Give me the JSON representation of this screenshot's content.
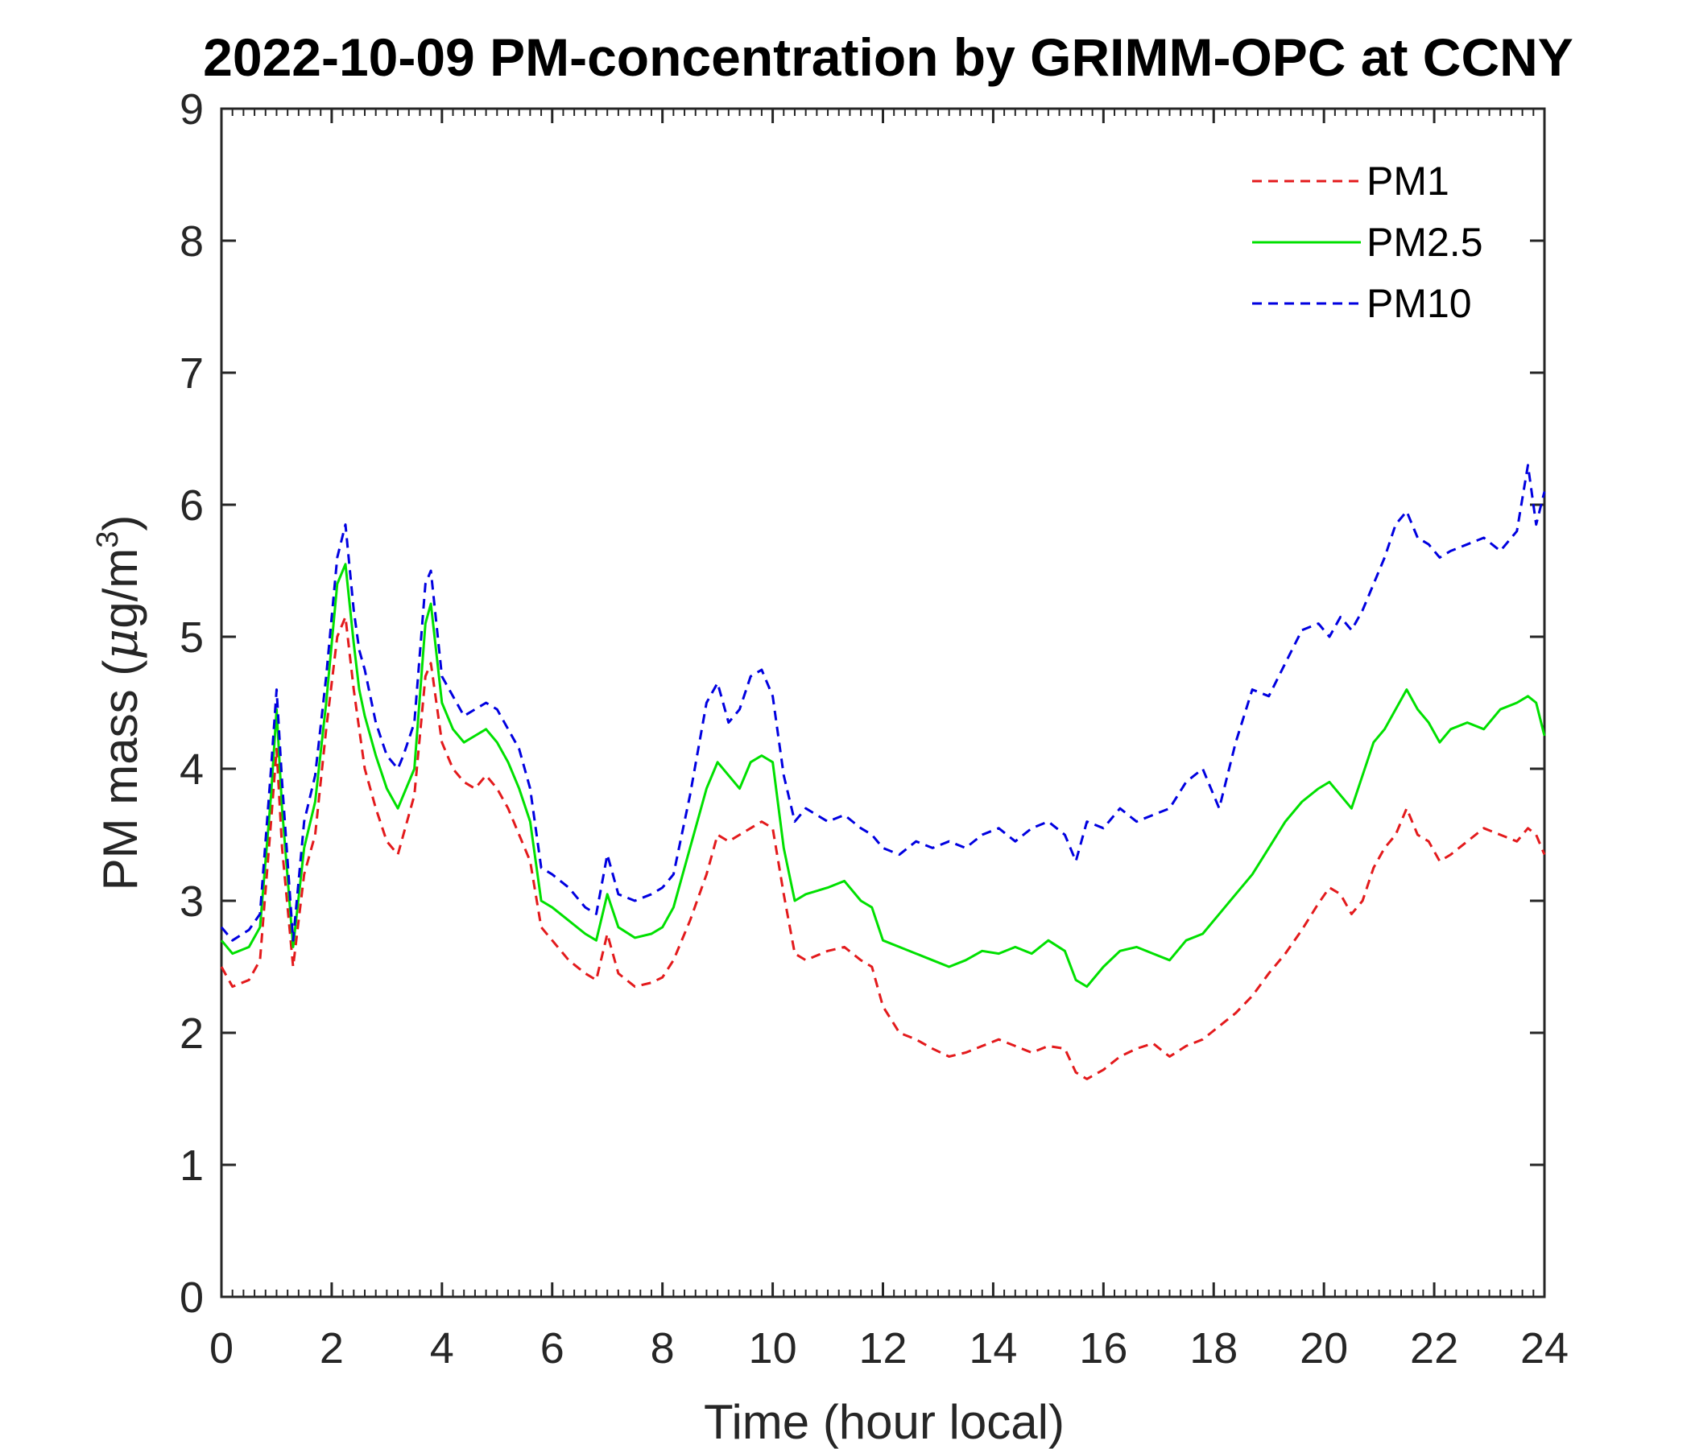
{
  "chart_data": {
    "type": "line",
    "title": "2022-10-09 PM-concentration by GRIMM-OPC at CCNY",
    "xlabel": "Time (hour local)",
    "ylabel_prefix": "PM mass (",
    "ylabel_mu": "μ",
    "ylabel_unit": "g/m",
    "ylabel_exp": "3",
    "ylabel_suffix": ")",
    "xlim": [
      0,
      24
    ],
    "ylim": [
      0,
      9
    ],
    "xticks": [
      "0",
      "2",
      "4",
      "6",
      "8",
      "10",
      "12",
      "14",
      "16",
      "18",
      "20",
      "22",
      "24"
    ],
    "yticks": [
      "0",
      "1",
      "2",
      "3",
      "4",
      "5",
      "6",
      "7",
      "8",
      "9"
    ],
    "grid": false,
    "legend_position": "top-right",
    "series": [
      {
        "name": "PM1",
        "color": "#e31a1c",
        "style": "dashed",
        "x": [
          0,
          0.2,
          0.5,
          0.7,
          0.9,
          1.0,
          1.1,
          1.3,
          1.5,
          1.7,
          1.9,
          2.1,
          2.25,
          2.4,
          2.5,
          2.6,
          2.8,
          3.0,
          3.2,
          3.3,
          3.5,
          3.7,
          3.8,
          4.0,
          4.2,
          4.4,
          4.6,
          4.8,
          5.0,
          5.2,
          5.4,
          5.6,
          5.8,
          6.0,
          6.3,
          6.6,
          6.8,
          7.0,
          7.2,
          7.5,
          7.8,
          8.0,
          8.2,
          8.5,
          8.8,
          9.0,
          9.2,
          9.4,
          9.6,
          9.8,
          10.0,
          10.2,
          10.4,
          10.6,
          11.0,
          11.3,
          11.6,
          11.8,
          12.0,
          12.3,
          12.6,
          12.9,
          13.2,
          13.5,
          13.8,
          14.1,
          14.4,
          14.7,
          15.0,
          15.3,
          15.5,
          15.7,
          16.0,
          16.3,
          16.6,
          16.9,
          17.2,
          17.5,
          17.8,
          18.1,
          18.4,
          18.7,
          19.0,
          19.3,
          19.6,
          19.9,
          20.1,
          20.3,
          20.5,
          20.7,
          20.9,
          21.1,
          21.3,
          21.5,
          21.7,
          21.9,
          22.1,
          22.3,
          22.6,
          22.9,
          23.2,
          23.5,
          23.7,
          23.85,
          24.0
        ],
        "y": [
          2.5,
          2.35,
          2.4,
          2.55,
          3.6,
          4.15,
          3.4,
          2.5,
          3.2,
          3.5,
          4.3,
          5.0,
          5.15,
          4.6,
          4.3,
          4.0,
          3.7,
          3.45,
          3.35,
          3.5,
          3.8,
          4.7,
          4.8,
          4.2,
          4.0,
          3.9,
          3.85,
          3.95,
          3.85,
          3.7,
          3.5,
          3.3,
          2.8,
          2.7,
          2.55,
          2.45,
          2.4,
          2.75,
          2.45,
          2.35,
          2.38,
          2.42,
          2.55,
          2.85,
          3.2,
          3.5,
          3.45,
          3.5,
          3.55,
          3.6,
          3.55,
          3.05,
          2.6,
          2.55,
          2.62,
          2.65,
          2.55,
          2.5,
          2.2,
          2.0,
          1.95,
          1.88,
          1.82,
          1.85,
          1.9,
          1.95,
          1.9,
          1.85,
          1.9,
          1.88,
          1.7,
          1.65,
          1.72,
          1.82,
          1.88,
          1.92,
          1.82,
          1.9,
          1.95,
          2.05,
          2.15,
          2.28,
          2.45,
          2.6,
          2.78,
          2.98,
          3.1,
          3.05,
          2.9,
          3.0,
          3.25,
          3.4,
          3.5,
          3.7,
          3.5,
          3.45,
          3.3,
          3.35,
          3.45,
          3.55,
          3.5,
          3.45,
          3.55,
          3.5,
          3.35
        ]
      },
      {
        "name": "PM2.5",
        "color": "#00e000",
        "style": "solid",
        "x": [
          0,
          0.2,
          0.5,
          0.7,
          0.9,
          1.0,
          1.1,
          1.3,
          1.5,
          1.7,
          1.9,
          2.1,
          2.25,
          2.4,
          2.5,
          2.6,
          2.8,
          3.0,
          3.2,
          3.3,
          3.5,
          3.7,
          3.8,
          4.0,
          4.2,
          4.4,
          4.6,
          4.8,
          5.0,
          5.2,
          5.4,
          5.6,
          5.8,
          6.0,
          6.3,
          6.6,
          6.8,
          7.0,
          7.2,
          7.5,
          7.8,
          8.0,
          8.2,
          8.5,
          8.8,
          9.0,
          9.2,
          9.4,
          9.6,
          9.8,
          10.0,
          10.2,
          10.4,
          10.6,
          11.0,
          11.3,
          11.6,
          11.8,
          12.0,
          12.3,
          12.6,
          12.9,
          13.2,
          13.5,
          13.8,
          14.1,
          14.4,
          14.7,
          15.0,
          15.3,
          15.5,
          15.7,
          16.0,
          16.3,
          16.6,
          16.9,
          17.2,
          17.5,
          17.8,
          18.1,
          18.4,
          18.7,
          19.0,
          19.3,
          19.6,
          19.9,
          20.1,
          20.3,
          20.5,
          20.7,
          20.9,
          21.1,
          21.3,
          21.5,
          21.7,
          21.9,
          22.1,
          22.3,
          22.6,
          22.9,
          23.2,
          23.5,
          23.7,
          23.85,
          24.0
        ],
        "y": [
          2.7,
          2.6,
          2.65,
          2.8,
          3.8,
          4.45,
          3.7,
          2.65,
          3.4,
          3.75,
          4.5,
          5.4,
          5.55,
          4.95,
          4.6,
          4.4,
          4.1,
          3.85,
          3.7,
          3.8,
          4.0,
          5.1,
          5.25,
          4.5,
          4.3,
          4.2,
          4.25,
          4.3,
          4.2,
          4.05,
          3.85,
          3.6,
          3.0,
          2.95,
          2.85,
          2.75,
          2.7,
          3.05,
          2.8,
          2.72,
          2.75,
          2.8,
          2.95,
          3.4,
          3.85,
          4.05,
          3.95,
          3.85,
          4.05,
          4.1,
          4.05,
          3.4,
          3.0,
          3.05,
          3.1,
          3.15,
          3.0,
          2.95,
          2.7,
          2.65,
          2.6,
          2.55,
          2.5,
          2.55,
          2.62,
          2.6,
          2.65,
          2.6,
          2.7,
          2.62,
          2.4,
          2.35,
          2.5,
          2.62,
          2.65,
          2.6,
          2.55,
          2.7,
          2.75,
          2.9,
          3.05,
          3.2,
          3.4,
          3.6,
          3.75,
          3.85,
          3.9,
          3.8,
          3.7,
          3.95,
          4.2,
          4.3,
          4.45,
          4.6,
          4.45,
          4.35,
          4.2,
          4.3,
          4.35,
          4.3,
          4.45,
          4.5,
          4.55,
          4.5,
          4.25
        ]
      },
      {
        "name": "PM10",
        "color": "#0000e0",
        "style": "dashed",
        "x": [
          0,
          0.2,
          0.5,
          0.7,
          0.9,
          1.0,
          1.1,
          1.3,
          1.5,
          1.7,
          1.9,
          2.1,
          2.25,
          2.4,
          2.5,
          2.6,
          2.8,
          3.0,
          3.2,
          3.3,
          3.5,
          3.7,
          3.8,
          4.0,
          4.2,
          4.4,
          4.6,
          4.8,
          5.0,
          5.2,
          5.4,
          5.6,
          5.8,
          6.0,
          6.3,
          6.6,
          6.8,
          7.0,
          7.2,
          7.5,
          7.8,
          8.0,
          8.2,
          8.5,
          8.8,
          9.0,
          9.2,
          9.4,
          9.6,
          9.8,
          10.0,
          10.2,
          10.4,
          10.6,
          11.0,
          11.3,
          11.6,
          11.8,
          12.0,
          12.3,
          12.6,
          12.9,
          13.2,
          13.5,
          13.8,
          14.1,
          14.4,
          14.7,
          15.0,
          15.3,
          15.5,
          15.7,
          16.0,
          16.3,
          16.6,
          16.9,
          17.2,
          17.5,
          17.8,
          18.1,
          18.4,
          18.7,
          19.0,
          19.3,
          19.6,
          19.9,
          20.1,
          20.3,
          20.5,
          20.7,
          20.9,
          21.1,
          21.3,
          21.5,
          21.7,
          21.9,
          22.1,
          22.3,
          22.6,
          22.9,
          23.2,
          23.5,
          23.7,
          23.85,
          24.0
        ],
        "y": [
          2.8,
          2.7,
          2.78,
          2.9,
          4.0,
          4.6,
          3.9,
          2.7,
          3.6,
          3.95,
          4.7,
          5.6,
          5.85,
          5.2,
          4.9,
          4.75,
          4.35,
          4.1,
          4.0,
          4.1,
          4.35,
          5.4,
          5.5,
          4.7,
          4.55,
          4.4,
          4.45,
          4.5,
          4.45,
          4.3,
          4.15,
          3.85,
          3.25,
          3.2,
          3.1,
          2.95,
          2.9,
          3.35,
          3.05,
          3.0,
          3.05,
          3.1,
          3.2,
          3.8,
          4.5,
          4.65,
          4.35,
          4.45,
          4.7,
          4.75,
          4.55,
          3.95,
          3.6,
          3.7,
          3.6,
          3.65,
          3.55,
          3.5,
          3.4,
          3.35,
          3.45,
          3.4,
          3.45,
          3.4,
          3.5,
          3.55,
          3.45,
          3.55,
          3.6,
          3.5,
          3.3,
          3.6,
          3.55,
          3.7,
          3.6,
          3.65,
          3.7,
          3.9,
          4.0,
          3.7,
          4.2,
          4.6,
          4.55,
          4.8,
          5.05,
          5.1,
          5.0,
          5.15,
          5.05,
          5.2,
          5.4,
          5.6,
          5.85,
          5.95,
          5.75,
          5.7,
          5.6,
          5.65,
          5.7,
          5.75,
          5.65,
          5.8,
          6.3,
          5.85,
          6.1
        ]
      }
    ]
  }
}
